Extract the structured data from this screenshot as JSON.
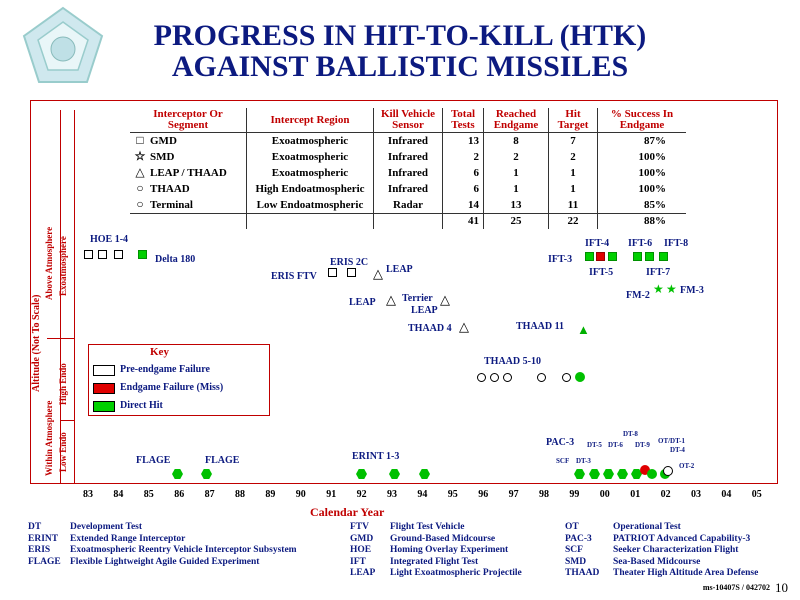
{
  "title": {
    "line1": "PROGRESS IN HIT-TO-KILL (HTK)",
    "line2": "AGAINST BALLISTIC MISSILES"
  },
  "table": {
    "headers": [
      "Interceptor Or Segment",
      "Intercept Region",
      "Kill Vehicle Sensor",
      "Total Tests",
      "Reached Endgame",
      "Hit Target",
      "% Success In Endgame"
    ],
    "rows": [
      {
        "symbol": "□",
        "name": "GMD",
        "region": "Exoatmospheric",
        "sensor": "Infrared",
        "total": "13",
        "endgame": "8",
        "hit": "7",
        "pct": "87%"
      },
      {
        "symbol": "☆",
        "name": "SMD",
        "region": "Exoatmospheric",
        "sensor": "Infrared",
        "total": "2",
        "endgame": "2",
        "hit": "2",
        "pct": "100%"
      },
      {
        "symbol": "△",
        "name": "LEAP / THAAD",
        "region": "Exoatmospheric",
        "sensor": "Infrared",
        "total": "6",
        "endgame": "1",
        "hit": "1",
        "pct": "100%"
      },
      {
        "symbol": "○",
        "name": "THAAD",
        "region": "High Endoatmospheric",
        "sensor": "Infrared",
        "total": "6",
        "endgame": "1",
        "hit": "1",
        "pct": "100%"
      },
      {
        "symbol": "○",
        "name": "Terminal",
        "region": "Low Endoatmospheric",
        "sensor": "Radar",
        "total": "14",
        "endgame": "13",
        "hit": "11",
        "pct": "85%"
      }
    ],
    "totals": {
      "total": "41",
      "endgame": "25",
      "hit": "22",
      "pct": "88%"
    }
  },
  "yaxis": {
    "main": "Altitude (Not To Scale)",
    "above": "Above Atmosphere",
    "exo": "Exoatmosphere",
    "within": "Within Atmosphere",
    "high": "High Endo",
    "low": "Low Endo"
  },
  "key": {
    "title": "Key",
    "items": [
      {
        "label": "Pre-endgame Failure",
        "color": "#ffffff"
      },
      {
        "label": "Endgame Failure (Miss)",
        "color": "#e00000"
      },
      {
        "label": "Direct Hit",
        "color": "#00d000"
      }
    ]
  },
  "labels": {
    "hoe": "HOE 1-4",
    "delta": "Delta 180",
    "eris2c": "ERIS 2C",
    "erisftv": "ERIS FTV",
    "leap1": "LEAP",
    "leap2": "LEAP",
    "terrier": "Terrier",
    "leap3": "LEAP",
    "thaad4": "THAAD 4",
    "thaad11": "THAAD 11",
    "thaad510": "THAAD 5-10",
    "ift4": "IFT-4",
    "ift3": "IFT-3",
    "ift5": "IFT-5",
    "ift6": "IFT-6",
    "ift8": "IFT-8",
    "ift7": "IFT-7",
    "fm2": "FM-2",
    "fm3": "FM-3",
    "flage1": "FLAGE",
    "flage2": "FLAGE",
    "erint": "ERINT 1-3",
    "pac3": "PAC-3",
    "dt5": "DT-5",
    "dt6": "DT-6",
    "dt8": "DT-8",
    "dt9": "DT-9",
    "ot1": "OT/DT-1",
    "dt4": "DT-4",
    "scf": "SCF",
    "dt3": "DT-3",
    "ot2": "OT-2"
  },
  "xaxis": {
    "label": "Calendar Year",
    "ticks": [
      "83",
      "84",
      "85",
      "86",
      "87",
      "88",
      "89",
      "90",
      "91",
      "92",
      "93",
      "94",
      "95",
      "96",
      "97",
      "98",
      "99",
      "00",
      "01",
      "02",
      "03",
      "04",
      "05"
    ]
  },
  "glossary": [
    {
      "abbr": "DT",
      "text": "Development Test"
    },
    {
      "abbr": "ERINT",
      "text": "Extended Range Interceptor"
    },
    {
      "abbr": "ERIS",
      "text": "Exoatmospheric Reentry Vehicle Interceptor Subsystem"
    },
    {
      "abbr": "FLAGE",
      "text": "Flexible Lightweight Agile Guided Experiment"
    },
    {
      "abbr": "FTV",
      "text": "Flight Test Vehicle"
    },
    {
      "abbr": "GMD",
      "text": "Ground-Based Midcourse"
    },
    {
      "abbr": "HOE",
      "text": "Homing Overlay Experiment"
    },
    {
      "abbr": "IFT",
      "text": "Integrated Flight Test"
    },
    {
      "abbr": "LEAP",
      "text": "Light Exoatmospheric Projectile"
    },
    {
      "abbr": "OT",
      "text": "Operational Test"
    },
    {
      "abbr": "PAC-3",
      "text": "PATRIOT Advanced Capability-3"
    },
    {
      "abbr": "SCF",
      "text": "Seeker Characterization Flight"
    },
    {
      "abbr": "SMD",
      "text": "Sea-Based Midcourse"
    },
    {
      "abbr": "THAAD",
      "text": "Theater High Altitude Area Defense"
    }
  ],
  "footer": {
    "code": "ms-10407S / 042702",
    "page": "10"
  },
  "colors": {
    "title": "#0c1a80",
    "accent": "#c00000",
    "hit": "#00d000",
    "miss": "#e00000"
  },
  "icons": {
    "logo": "pentagon-seal-icon"
  }
}
